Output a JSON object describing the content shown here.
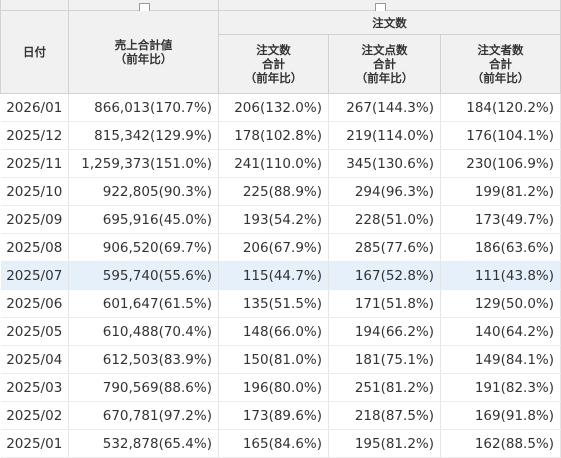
{
  "table": {
    "headers": {
      "date": "日付",
      "sales_line1": "売上合計値",
      "sales_line2": "（前年比）",
      "orders_group": "注文数",
      "orders_total": [
        "注文数",
        "合計",
        "（前年比）"
      ],
      "order_items_total": [
        "注文点数",
        "合計",
        "（前年比）"
      ],
      "customers_total": [
        "注文者数",
        "合計",
        "（前年比）"
      ]
    },
    "highlighted_row": "2025/07",
    "rows": [
      {
        "date": "2026/01",
        "sales": "866,013(170.7%)",
        "orders": "206(132.0%)",
        "items": "267(144.3%)",
        "customers": "184(120.2%)"
      },
      {
        "date": "2025/12",
        "sales": "815,342(129.9%)",
        "orders": "178(102.8%)",
        "items": "219(114.0%)",
        "customers": "176(104.1%)"
      },
      {
        "date": "2025/11",
        "sales": "1,259,373(151.0%)",
        "orders": "241(110.0%)",
        "items": "345(130.6%)",
        "customers": "230(106.9%)"
      },
      {
        "date": "2025/10",
        "sales": "922,805(90.3%)",
        "orders": "225(88.9%)",
        "items": "294(96.3%)",
        "customers": "199(81.2%)"
      },
      {
        "date": "2025/09",
        "sales": "695,916(45.0%)",
        "orders": "193(54.2%)",
        "items": "228(51.0%)",
        "customers": "173(49.7%)"
      },
      {
        "date": "2025/08",
        "sales": "906,520(69.7%)",
        "orders": "206(67.9%)",
        "items": "285(77.6%)",
        "customers": "186(63.6%)"
      },
      {
        "date": "2025/07",
        "sales": "595,740(55.6%)",
        "orders": "115(44.7%)",
        "items": "167(52.8%)",
        "customers": "111(43.8%)"
      },
      {
        "date": "2025/06",
        "sales": "601,647(61.5%)",
        "orders": "135(51.5%)",
        "items": "171(51.8%)",
        "customers": "129(50.0%)"
      },
      {
        "date": "2025/05",
        "sales": "610,488(70.4%)",
        "orders": "148(66.0%)",
        "items": "194(66.2%)",
        "customers": "140(64.2%)"
      },
      {
        "date": "2025/04",
        "sales": "612,503(83.9%)",
        "orders": "150(81.0%)",
        "items": "181(75.1%)",
        "customers": "149(84.1%)"
      },
      {
        "date": "2025/03",
        "sales": "790,569(88.6%)",
        "orders": "196(80.0%)",
        "items": "251(81.2%)",
        "customers": "191(82.3%)"
      },
      {
        "date": "2025/02",
        "sales": "670,781(97.2%)",
        "orders": "173(89.6%)",
        "items": "218(87.5%)",
        "customers": "169(91.8%)"
      },
      {
        "date": "2025/01",
        "sales": "532,878(65.4%)",
        "orders": "165(84.6%)",
        "items": "195(81.2%)",
        "customers": "162(88.5%)"
      }
    ]
  }
}
